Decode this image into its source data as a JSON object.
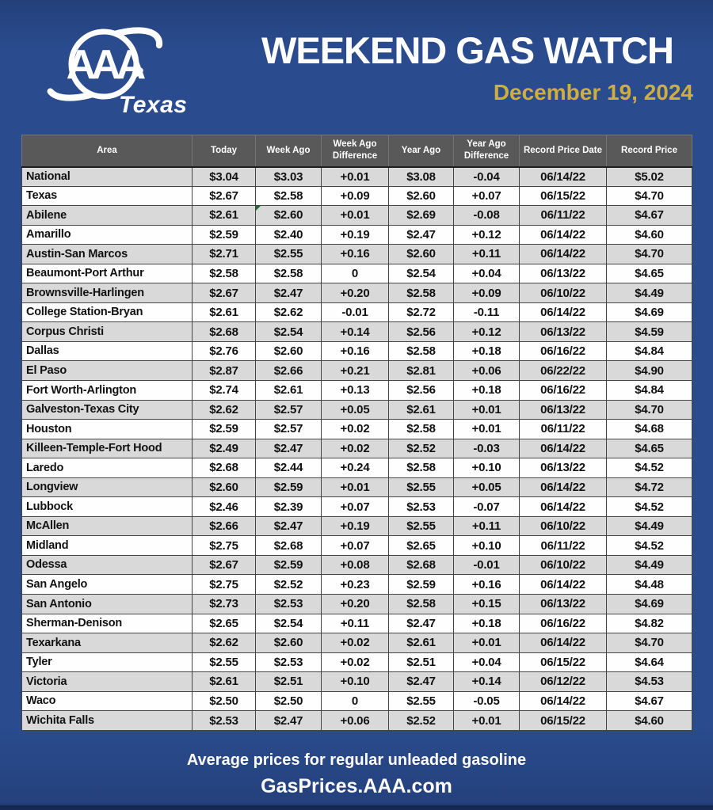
{
  "header": {
    "title": "WEEKEND GAS WATCH",
    "date": "December 19, 2024",
    "logo_brand": "AAA",
    "logo_region": "Texas"
  },
  "footer": {
    "line1": "Average prices for regular unleaded gasoline",
    "line2": "GasPrices.AAA.com"
  },
  "colors": {
    "background_blue": "#2a4b8d",
    "date_gold": "#cfae3d",
    "header_gray": "#595959",
    "row_stripe_gray": "#d9d9d9",
    "flag_green": "#1e6b2f",
    "text_white": "#ffffff"
  },
  "chart_data": {
    "type": "table",
    "title": "WEEKEND GAS WATCH",
    "subtitle": "December 19, 2024",
    "columns": [
      "Area",
      "Today",
      "Week Ago",
      "Week Ago Difference",
      "Year Ago",
      "Year Ago Difference",
      "Record Price Date",
      "Record Price"
    ],
    "rows": [
      [
        "National",
        "$3.04",
        "$3.03",
        "+0.01",
        "$3.08",
        "-0.04",
        "06/14/22",
        "$5.02"
      ],
      [
        "Texas",
        "$2.67",
        "$2.58",
        "+0.09",
        "$2.60",
        "+0.07",
        "06/15/22",
        "$4.70"
      ],
      [
        "Abilene",
        "$2.61",
        "$2.60",
        "+0.01",
        "$2.69",
        "-0.08",
        "06/11/22",
        "$4.67"
      ],
      [
        "Amarillo",
        "$2.59",
        "$2.40",
        "+0.19",
        "$2.47",
        "+0.12",
        "06/14/22",
        "$4.60"
      ],
      [
        "Austin-San Marcos",
        "$2.71",
        "$2.55",
        "+0.16",
        "$2.60",
        "+0.11",
        "06/14/22",
        "$4.70"
      ],
      [
        "Beaumont-Port Arthur",
        "$2.58",
        "$2.58",
        "0",
        "$2.54",
        "+0.04",
        "06/13/22",
        "$4.65"
      ],
      [
        "Brownsville-Harlingen",
        "$2.67",
        "$2.47",
        "+0.20",
        "$2.58",
        "+0.09",
        "06/10/22",
        "$4.49"
      ],
      [
        "College Station-Bryan",
        "$2.61",
        "$2.62",
        "-0.01",
        "$2.72",
        "-0.11",
        "06/14/22",
        "$4.69"
      ],
      [
        "Corpus Christi",
        "$2.68",
        "$2.54",
        "+0.14",
        "$2.56",
        "+0.12",
        "06/13/22",
        "$4.59"
      ],
      [
        "Dallas",
        "$2.76",
        "$2.60",
        "+0.16",
        "$2.58",
        "+0.18",
        "06/16/22",
        "$4.84"
      ],
      [
        "El Paso",
        "$2.87",
        "$2.66",
        "+0.21",
        "$2.81",
        "+0.06",
        "06/22/22",
        "$4.90"
      ],
      [
        "Fort Worth-Arlington",
        "$2.74",
        "$2.61",
        "+0.13",
        "$2.56",
        "+0.18",
        "06/16/22",
        "$4.84"
      ],
      [
        "Galveston-Texas City",
        "$2.62",
        "$2.57",
        "+0.05",
        "$2.61",
        "+0.01",
        "06/13/22",
        "$4.70"
      ],
      [
        "Houston",
        "$2.59",
        "$2.57",
        "+0.02",
        "$2.58",
        "+0.01",
        "06/11/22",
        "$4.68"
      ],
      [
        "Killeen-Temple-Fort Hood",
        "$2.49",
        "$2.47",
        "+0.02",
        "$2.52",
        "-0.03",
        "06/14/22",
        "$4.65"
      ],
      [
        "Laredo",
        "$2.68",
        "$2.44",
        "+0.24",
        "$2.58",
        "+0.10",
        "06/13/22",
        "$4.52"
      ],
      [
        "Longview",
        "$2.60",
        "$2.59",
        "+0.01",
        "$2.55",
        "+0.05",
        "06/14/22",
        "$4.72"
      ],
      [
        "Lubbock",
        "$2.46",
        "$2.39",
        "+0.07",
        "$2.53",
        "-0.07",
        "06/14/22",
        "$4.52"
      ],
      [
        "McAllen",
        "$2.66",
        "$2.47",
        "+0.19",
        "$2.55",
        "+0.11",
        "06/10/22",
        "$4.49"
      ],
      [
        "Midland",
        "$2.75",
        "$2.68",
        "+0.07",
        "$2.65",
        "+0.10",
        "06/11/22",
        "$4.52"
      ],
      [
        "Odessa",
        "$2.67",
        "$2.59",
        "+0.08",
        "$2.68",
        "-0.01",
        "06/10/22",
        "$4.49"
      ],
      [
        "San Angelo",
        "$2.75",
        "$2.52",
        "+0.23",
        "$2.59",
        "+0.16",
        "06/14/22",
        "$4.48"
      ],
      [
        "San Antonio",
        "$2.73",
        "$2.53",
        "+0.20",
        "$2.58",
        "+0.15",
        "06/13/22",
        "$4.69"
      ],
      [
        "Sherman-Denison",
        "$2.65",
        "$2.54",
        "+0.11",
        "$2.47",
        "+0.18",
        "06/16/22",
        "$4.82"
      ],
      [
        "Texarkana",
        "$2.62",
        "$2.60",
        "+0.02",
        "$2.61",
        "+0.01",
        "06/14/22",
        "$4.70"
      ],
      [
        "Tyler",
        "$2.55",
        "$2.53",
        "+0.02",
        "$2.51",
        "+0.04",
        "06/15/22",
        "$4.64"
      ],
      [
        "Victoria",
        "$2.61",
        "$2.51",
        "+0.10",
        "$2.47",
        "+0.14",
        "06/12/22",
        "$4.53"
      ],
      [
        "Waco",
        "$2.50",
        "$2.50",
        "0",
        "$2.55",
        "-0.05",
        "06/14/22",
        "$4.67"
      ],
      [
        "Wichita Falls",
        "$2.53",
        "$2.47",
        "+0.06",
        "$2.52",
        "+0.01",
        "06/15/22",
        "$4.60"
      ]
    ],
    "cell_flag": {
      "row": "Abilene",
      "column": "Week Ago",
      "shape": "triangle",
      "color": "#1e6b2f"
    },
    "layout": {
      "striped": true,
      "stripe_start": "first-row",
      "header_background": "#595959"
    }
  }
}
